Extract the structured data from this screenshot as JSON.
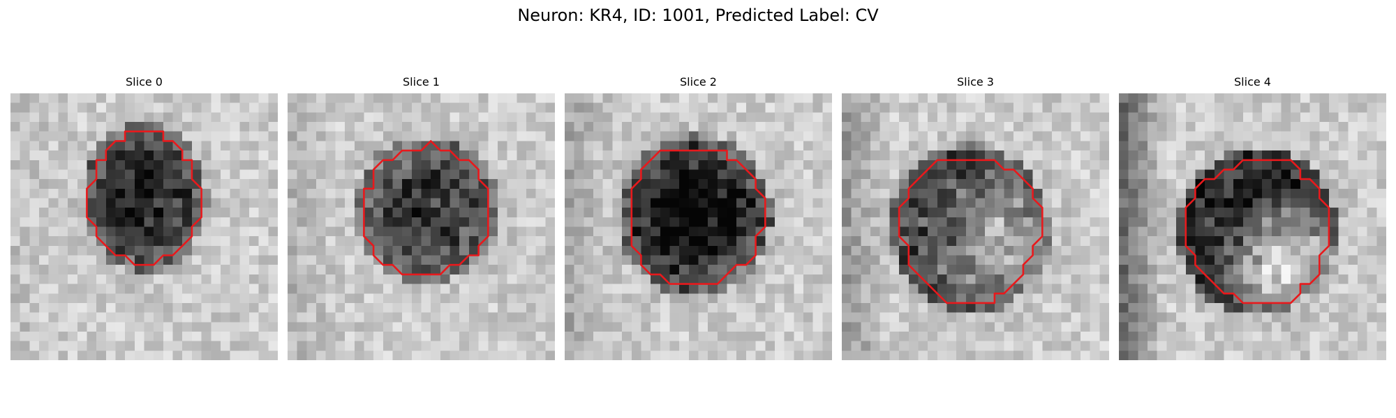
{
  "figure": {
    "title": "Neuron: KR4, ID: 1001, Predicted Label: CV"
  },
  "slices": [
    {
      "title": "Slice 0",
      "image": "grayscale-cell-patch",
      "contour_color": "#e8191c",
      "center": [
        0.5,
        0.39
      ],
      "radius": [
        0.41,
        0.49
      ],
      "core_darkness": 0.58
    },
    {
      "title": "Slice 1",
      "image": "grayscale-cell-patch",
      "contour_color": "#e8191c",
      "center": [
        0.52,
        0.44
      ],
      "radius": [
        0.48,
        0.48
      ],
      "core_darkness": 0.48
    },
    {
      "title": "Slice 2",
      "image": "grayscale-cell-patch",
      "contour_color": "#e8191c",
      "center": [
        0.49,
        0.46
      ],
      "radius": [
        0.5,
        0.53
      ],
      "core_darkness": 0.66
    },
    {
      "title": "Slice 3",
      "image": "grayscale-cell-patch",
      "contour_color": "#e8191c",
      "center": [
        0.48,
        0.51
      ],
      "radius": [
        0.52,
        0.55
      ],
      "core_darkness": 0.5
    },
    {
      "title": "Slice 4",
      "image": "grayscale-cell-patch",
      "contour_color": "#e8191c",
      "center": [
        0.52,
        0.52
      ],
      "radius": [
        0.52,
        0.55
      ],
      "core_darkness": 0.62
    }
  ]
}
